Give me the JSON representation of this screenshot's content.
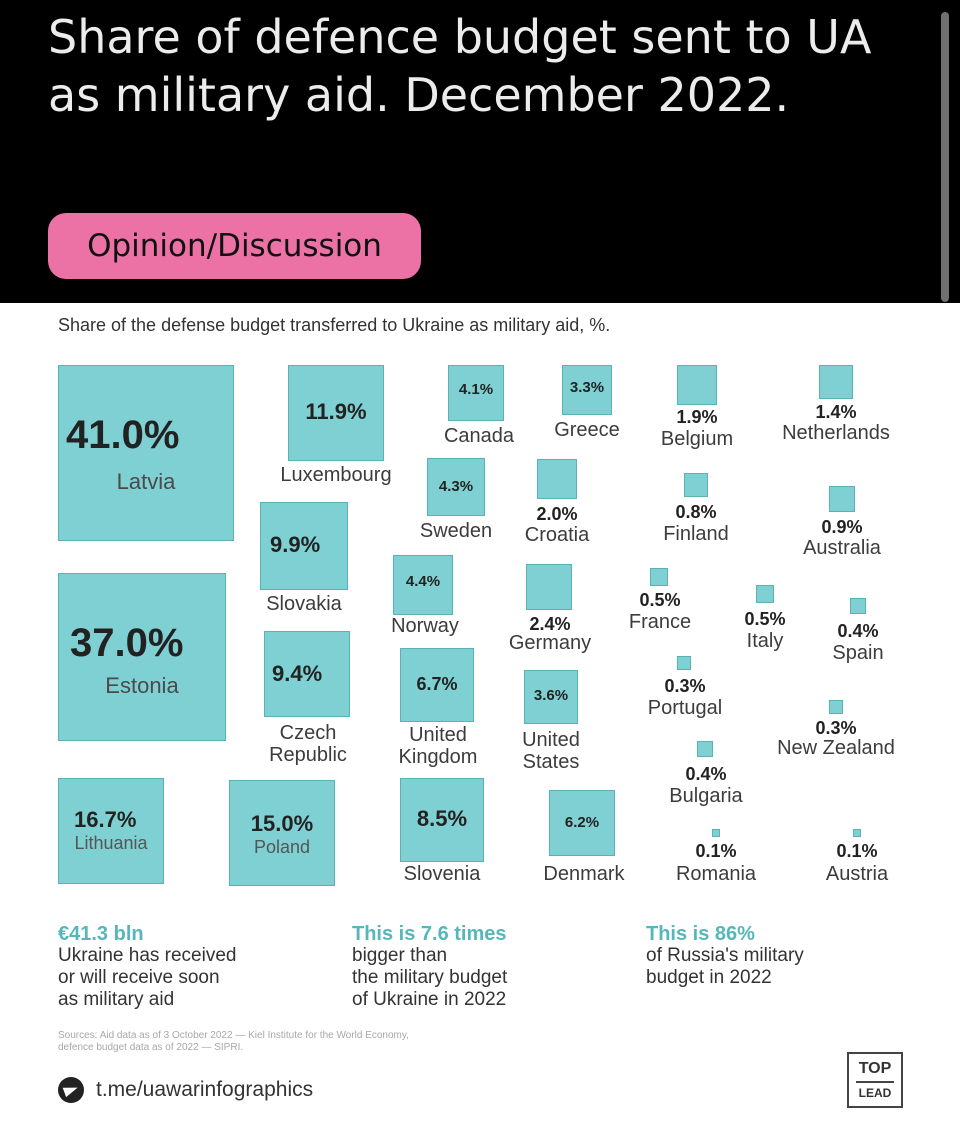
{
  "post": {
    "title": "Share of defence budget sent to UA as military aid. December 2022.",
    "flair": "Opinion/Discussion"
  },
  "infographic": {
    "subtitle": "Share of the defense budget transferred to Ukraine as military aid, %.",
    "squares": [
      {
        "country": "Latvia",
        "value": "41.0%"
      },
      {
        "country": "Estonia",
        "value": "37.0%"
      },
      {
        "country": "Lithuania",
        "value": "16.7%"
      },
      {
        "country": "Poland",
        "value": "15.0%"
      },
      {
        "country": "Luxembourg",
        "value": "11.9%"
      },
      {
        "country": "Slovakia",
        "value": "9.9%"
      },
      {
        "country": "Czech Republic",
        "value": "9.4%"
      },
      {
        "country": "Slovenia",
        "value": "8.5%"
      },
      {
        "country": "United Kingdom",
        "value": "6.7%"
      },
      {
        "country": "Denmark",
        "value": "6.2%"
      },
      {
        "country": "Norway",
        "value": "4.4%"
      },
      {
        "country": "Sweden",
        "value": "4.3%"
      },
      {
        "country": "Canada",
        "value": "4.1%"
      },
      {
        "country": "United States",
        "value": "3.6%"
      },
      {
        "country": "Greece",
        "value": "3.3%"
      },
      {
        "country": "Germany",
        "value": "2.4%"
      },
      {
        "country": "Croatia",
        "value": "2.0%"
      },
      {
        "country": "Belgium",
        "value": "1.9%"
      },
      {
        "country": "Netherlands",
        "value": "1.4%"
      },
      {
        "country": "Australia",
        "value": "0.9%"
      },
      {
        "country": "Finland",
        "value": "0.8%"
      },
      {
        "country": "France",
        "value": "0.5%"
      },
      {
        "country": "Italy",
        "value": "0.5%"
      },
      {
        "country": "Spain",
        "value": "0.4%"
      },
      {
        "country": "Bulgaria",
        "value": "0.4%"
      },
      {
        "country": "Portugal",
        "value": "0.3%"
      },
      {
        "country": "New Zealand",
        "value": "0.3%"
      },
      {
        "country": "Romania",
        "value": "0.1%"
      },
      {
        "country": "Austria",
        "value": "0.1%"
      }
    ],
    "facts": [
      {
        "highlight": "€41.3 bln",
        "lines": [
          "Ukraine has received",
          "or will receive soon",
          "as military aid"
        ]
      },
      {
        "highlight": "This is 7.6 times",
        "lines": [
          "bigger than",
          "the military budget",
          "of Ukraine in 2022"
        ]
      },
      {
        "highlight": "This is 86%",
        "lines": [
          "of Russia's military",
          "budget in 2022"
        ]
      }
    ],
    "sources": [
      "Sources: Aid data as of 3 October 2022 — Kiel Institute for the World Economy,",
      "defence budget data as of 2022 — SIPRI."
    ],
    "telegram": "t.me/uawarinfographics",
    "brand": {
      "line1": "TOP",
      "line2": "LEAD"
    },
    "colors": {
      "square_fill": "#7fd0d3",
      "highlight_text": "#55b7bb",
      "flair_bg": "#ec72a6"
    }
  }
}
